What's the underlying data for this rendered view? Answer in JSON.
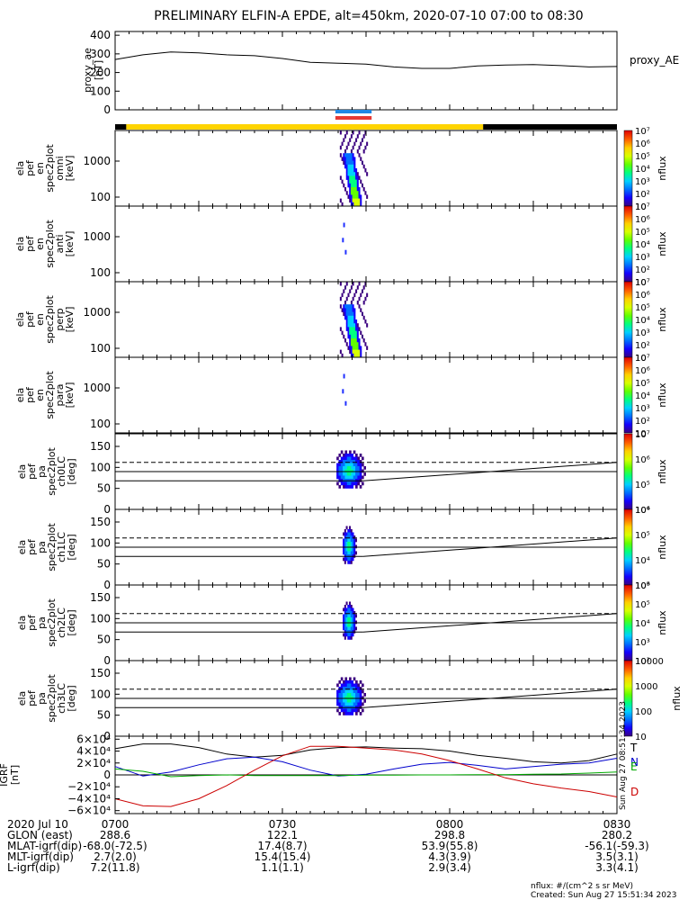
{
  "title": "PRELIMINARY ELFIN-A EPDE, alt=450km, 2020-07-10 07:00 to 08:30",
  "chart_data": {
    "type": "heatmap",
    "time_range": [
      "07:00",
      "08:30"
    ],
    "panels": [
      {
        "id": "proxy_ae",
        "type": "line",
        "ylabel": [
          "proxy_ae",
          "[nT]"
        ],
        "ylim": [
          0,
          420
        ],
        "yticks": [
          "0",
          "100",
          "200",
          "300",
          "400"
        ],
        "legend": "proxy_AE",
        "x_min": [
          0,
          5,
          10,
          15,
          20,
          25,
          30,
          35,
          40,
          45,
          50,
          55,
          60,
          65,
          70,
          75,
          80,
          85,
          90
        ],
        "values": [
          270,
          295,
          310,
          305,
          295,
          290,
          275,
          255,
          250,
          245,
          230,
          222,
          222,
          235,
          240,
          243,
          237,
          230,
          232
        ]
      },
      {
        "id": "en_omni",
        "ylabel": [
          "ela",
          "pef",
          "en",
          "spec2plot",
          "omni",
          "[keV]"
        ],
        "yticks": [
          "100",
          "1000"
        ],
        "colorbar": {
          "label": "nflux",
          "ticks": [
            "10",
            "10²",
            "10³",
            "10⁴",
            "10⁵",
            "10⁶",
            "10⁷"
          ]
        }
      },
      {
        "id": "en_anti",
        "ylabel": [
          "ela",
          "pef",
          "en",
          "spec2plot",
          "anti",
          "[keV]"
        ],
        "yticks": [
          "100",
          "1000"
        ],
        "colorbar": {
          "label": "nflux",
          "ticks": [
            "10",
            "10²",
            "10³",
            "10⁴",
            "10⁵",
            "10⁶",
            "10⁷"
          ]
        }
      },
      {
        "id": "en_perp",
        "ylabel": [
          "ela",
          "pef",
          "en",
          "spec2plot",
          "perp",
          "[keV]"
        ],
        "yticks": [
          "100",
          "1000"
        ],
        "colorbar": {
          "label": "nflux",
          "ticks": [
            "10",
            "10²",
            "10³",
            "10⁴",
            "10⁵",
            "10⁶",
            "10⁷"
          ]
        }
      },
      {
        "id": "en_para",
        "ylabel": [
          "ela",
          "pef",
          "en",
          "spec2plot",
          "para",
          "[keV]"
        ],
        "yticks": [
          "100",
          "1000"
        ],
        "colorbar": {
          "label": "nflux",
          "ticks": [
            "10",
            "10²",
            "10³",
            "10⁴",
            "10⁵",
            "10⁶",
            "10⁷"
          ]
        }
      },
      {
        "id": "pa_ch0",
        "ylabel": [
          "ela",
          "pef",
          "pa",
          "spec2plot",
          "ch0LC",
          "[deg]"
        ],
        "yticks": [
          "0",
          "50",
          "100",
          "150"
        ],
        "colorbar": {
          "label": "nflux",
          "ticks": [
            "10⁴",
            "10⁵",
            "10⁶",
            "10⁷"
          ]
        }
      },
      {
        "id": "pa_ch1",
        "ylabel": [
          "ela",
          "pef",
          "pa",
          "spec2plot",
          "ch1LC",
          "[deg]"
        ],
        "yticks": [
          "0",
          "50",
          "100",
          "150"
        ],
        "colorbar": {
          "label": "nflux",
          "ticks": [
            "10³",
            "10⁴",
            "10⁵",
            "10⁶"
          ]
        }
      },
      {
        "id": "pa_ch2",
        "ylabel": [
          "ela",
          "pef",
          "pa",
          "spec2plot",
          "ch2LC",
          "[deg]"
        ],
        "yticks": [
          "0",
          "50",
          "100",
          "150"
        ],
        "colorbar": {
          "label": "nflux",
          "ticks": [
            "10²",
            "10³",
            "10⁴",
            "10⁵",
            "10⁶"
          ]
        }
      },
      {
        "id": "pa_ch3",
        "ylabel": [
          "ela",
          "pef",
          "pa",
          "spec2plot",
          "ch3LC",
          "[deg]"
        ],
        "yticks": [
          "0",
          "50",
          "100",
          "150"
        ],
        "colorbar": {
          "label": "nflux",
          "ticks": [
            "10",
            "100",
            "1000",
            "10000"
          ]
        }
      },
      {
        "id": "igrf",
        "type": "line",
        "ylabel": [
          "IGRF",
          "[nT]"
        ],
        "ylim": [
          -65000,
          65000
        ],
        "yticks": [
          "−6×10⁴",
          "−4×10⁴",
          "−2×10⁴",
          "0",
          "2×10⁴",
          "4×10⁴",
          "6×10⁴"
        ],
        "series": [
          {
            "name": "T",
            "color": "#000000",
            "x_min": [
              0,
              5,
              10,
              15,
              20,
              25,
              30,
              35,
              40,
              45,
              50,
              55,
              60,
              65,
              70,
              75,
              80,
              85,
              90
            ],
            "values": [
              44000,
              52000,
              52000,
              46000,
              35000,
              30000,
              33000,
              42000,
              46000,
              47000,
              45000,
              44000,
              40000,
              33000,
              28000,
              22000,
              20000,
              24000,
              35000
            ]
          },
          {
            "name": "N",
            "color": "#0000cc",
            "x_min": [
              0,
              5,
              10,
              15,
              20,
              25,
              30,
              35,
              40,
              45,
              50,
              55,
              60,
              65,
              70,
              75,
              80,
              85,
              90
            ],
            "values": [
              14000,
              -2000,
              5000,
              17000,
              27000,
              30000,
              22000,
              8000,
              -2000,
              1000,
              10000,
              18000,
              21000,
              16000,
              10000,
              14000,
              18000,
              20000,
              28000
            ]
          },
          {
            "name": "E",
            "color": "#00aa00",
            "x_min": [
              0,
              5,
              10,
              15,
              20,
              25,
              30,
              35,
              40,
              45,
              50,
              55,
              60,
              65,
              70,
              75,
              80,
              85,
              90
            ],
            "values": [
              10000,
              6000,
              -3000,
              -1000,
              0,
              -1000,
              -1000,
              -1000,
              -1000,
              -500,
              -500,
              0,
              0,
              500,
              500,
              1000,
              1500,
              3000,
              5000
            ]
          },
          {
            "name": "D",
            "color": "#cc0000",
            "x_min": [
              0,
              5,
              10,
              15,
              20,
              25,
              30,
              35,
              40,
              45,
              50,
              55,
              60,
              65,
              70,
              75,
              80,
              85,
              90
            ],
            "values": [
              -40000,
              -52000,
              -53000,
              -40000,
              -18000,
              8000,
              32000,
              48000,
              48000,
              45000,
              42000,
              35000,
              24000,
              10000,
              -5000,
              -15000,
              -22000,
              -28000,
              -37000
            ]
          }
        ]
      }
    ],
    "orbit_bar": [
      {
        "x_min": [
          0,
          2
        ],
        "color": "#000000"
      },
      {
        "x_min": [
          2,
          66
        ],
        "color": "#ffd400"
      },
      {
        "x_min": [
          66,
          90
        ],
        "color": "#000000"
      }
    ],
    "science_zone_bars": [
      {
        "color": "#1e88e5",
        "x_min": [
          39.5,
          46
        ]
      },
      {
        "color": "#e53935",
        "x_min": [
          39.5,
          46
        ]
      }
    ],
    "colorbar_colors": [
      "#3b0080",
      "#1400ff",
      "#0070ff",
      "#00d0ff",
      "#00ff80",
      "#60ff00",
      "#d8ff00",
      "#ffd000",
      "#ff6000",
      "#e00000"
    ]
  },
  "footer": {
    "rows": [
      {
        "label": "2020 Jul 10",
        "values": [
          "0700",
          "0730",
          "0800",
          "0830"
        ]
      },
      {
        "label": "GLON (east)",
        "values": [
          "288.6",
          "122.1",
          "298.8",
          "280.2"
        ]
      },
      {
        "label": "MLAT-igrf(dip)",
        "values": [
          "-68.0(-72.5)",
          "17.4(8.7)",
          "53.9(55.8)",
          "-56.1(-59.3)"
        ]
      },
      {
        "label": "MLT-igrf(dip)",
        "values": [
          "2.7(2.0)",
          "15.4(15.4)",
          "4.3(3.9)",
          "3.5(3.1)"
        ]
      },
      {
        "label": "L-igrf(dip)",
        "values": [
          "7.2(11.8)",
          "1.1(1.1)",
          "2.9(3.4)",
          "3.3(4.1)"
        ]
      }
    ],
    "units_note": "nflux: #/(cm^2 s sr MeV)",
    "created": "Created: Sun Aug 27 15:51:34 2023",
    "side_stamp": "Sun Aug 27 08:51:34 2023"
  }
}
